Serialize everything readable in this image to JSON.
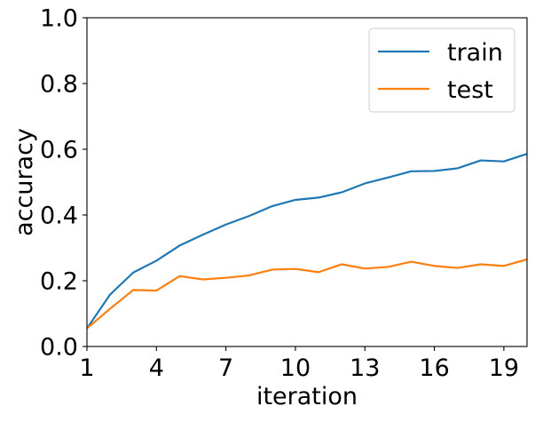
{
  "chart_data": {
    "type": "line",
    "title": "",
    "xlabel": "iteration",
    "ylabel": "accuracy",
    "xlim": [
      1,
      20
    ],
    "ylim": [
      0.0,
      1.0
    ],
    "xticks": [
      1,
      4,
      7,
      10,
      13,
      16,
      19
    ],
    "xtick_labels": [
      "1",
      "4",
      "7",
      "10",
      "13",
      "16",
      "19"
    ],
    "yticks": [
      0.0,
      0.2,
      0.4,
      0.6,
      0.8,
      1.0
    ],
    "ytick_labels": [
      "0.0",
      "0.2",
      "0.4",
      "0.6",
      "0.8",
      "1.0"
    ],
    "grid": false,
    "legend_position": "top-right",
    "x": [
      1,
      2,
      3,
      4,
      5,
      6,
      7,
      8,
      9,
      10,
      11,
      12,
      13,
      14,
      15,
      16,
      17,
      18,
      19,
      20
    ],
    "series": [
      {
        "name": "train",
        "color": "#1f77b4",
        "values": [
          0.055,
          0.158,
          0.225,
          0.261,
          0.307,
          0.34,
          0.371,
          0.397,
          0.427,
          0.446,
          0.453,
          0.469,
          0.496,
          0.514,
          0.533,
          0.534,
          0.542,
          0.566,
          0.563,
          0.586
        ]
      },
      {
        "name": "test",
        "color": "#ff7f0e",
        "values": [
          0.055,
          0.115,
          0.172,
          0.17,
          0.214,
          0.204,
          0.209,
          0.216,
          0.234,
          0.236,
          0.226,
          0.25,
          0.237,
          0.242,
          0.258,
          0.245,
          0.239,
          0.25,
          0.245,
          0.265
        ]
      }
    ]
  }
}
